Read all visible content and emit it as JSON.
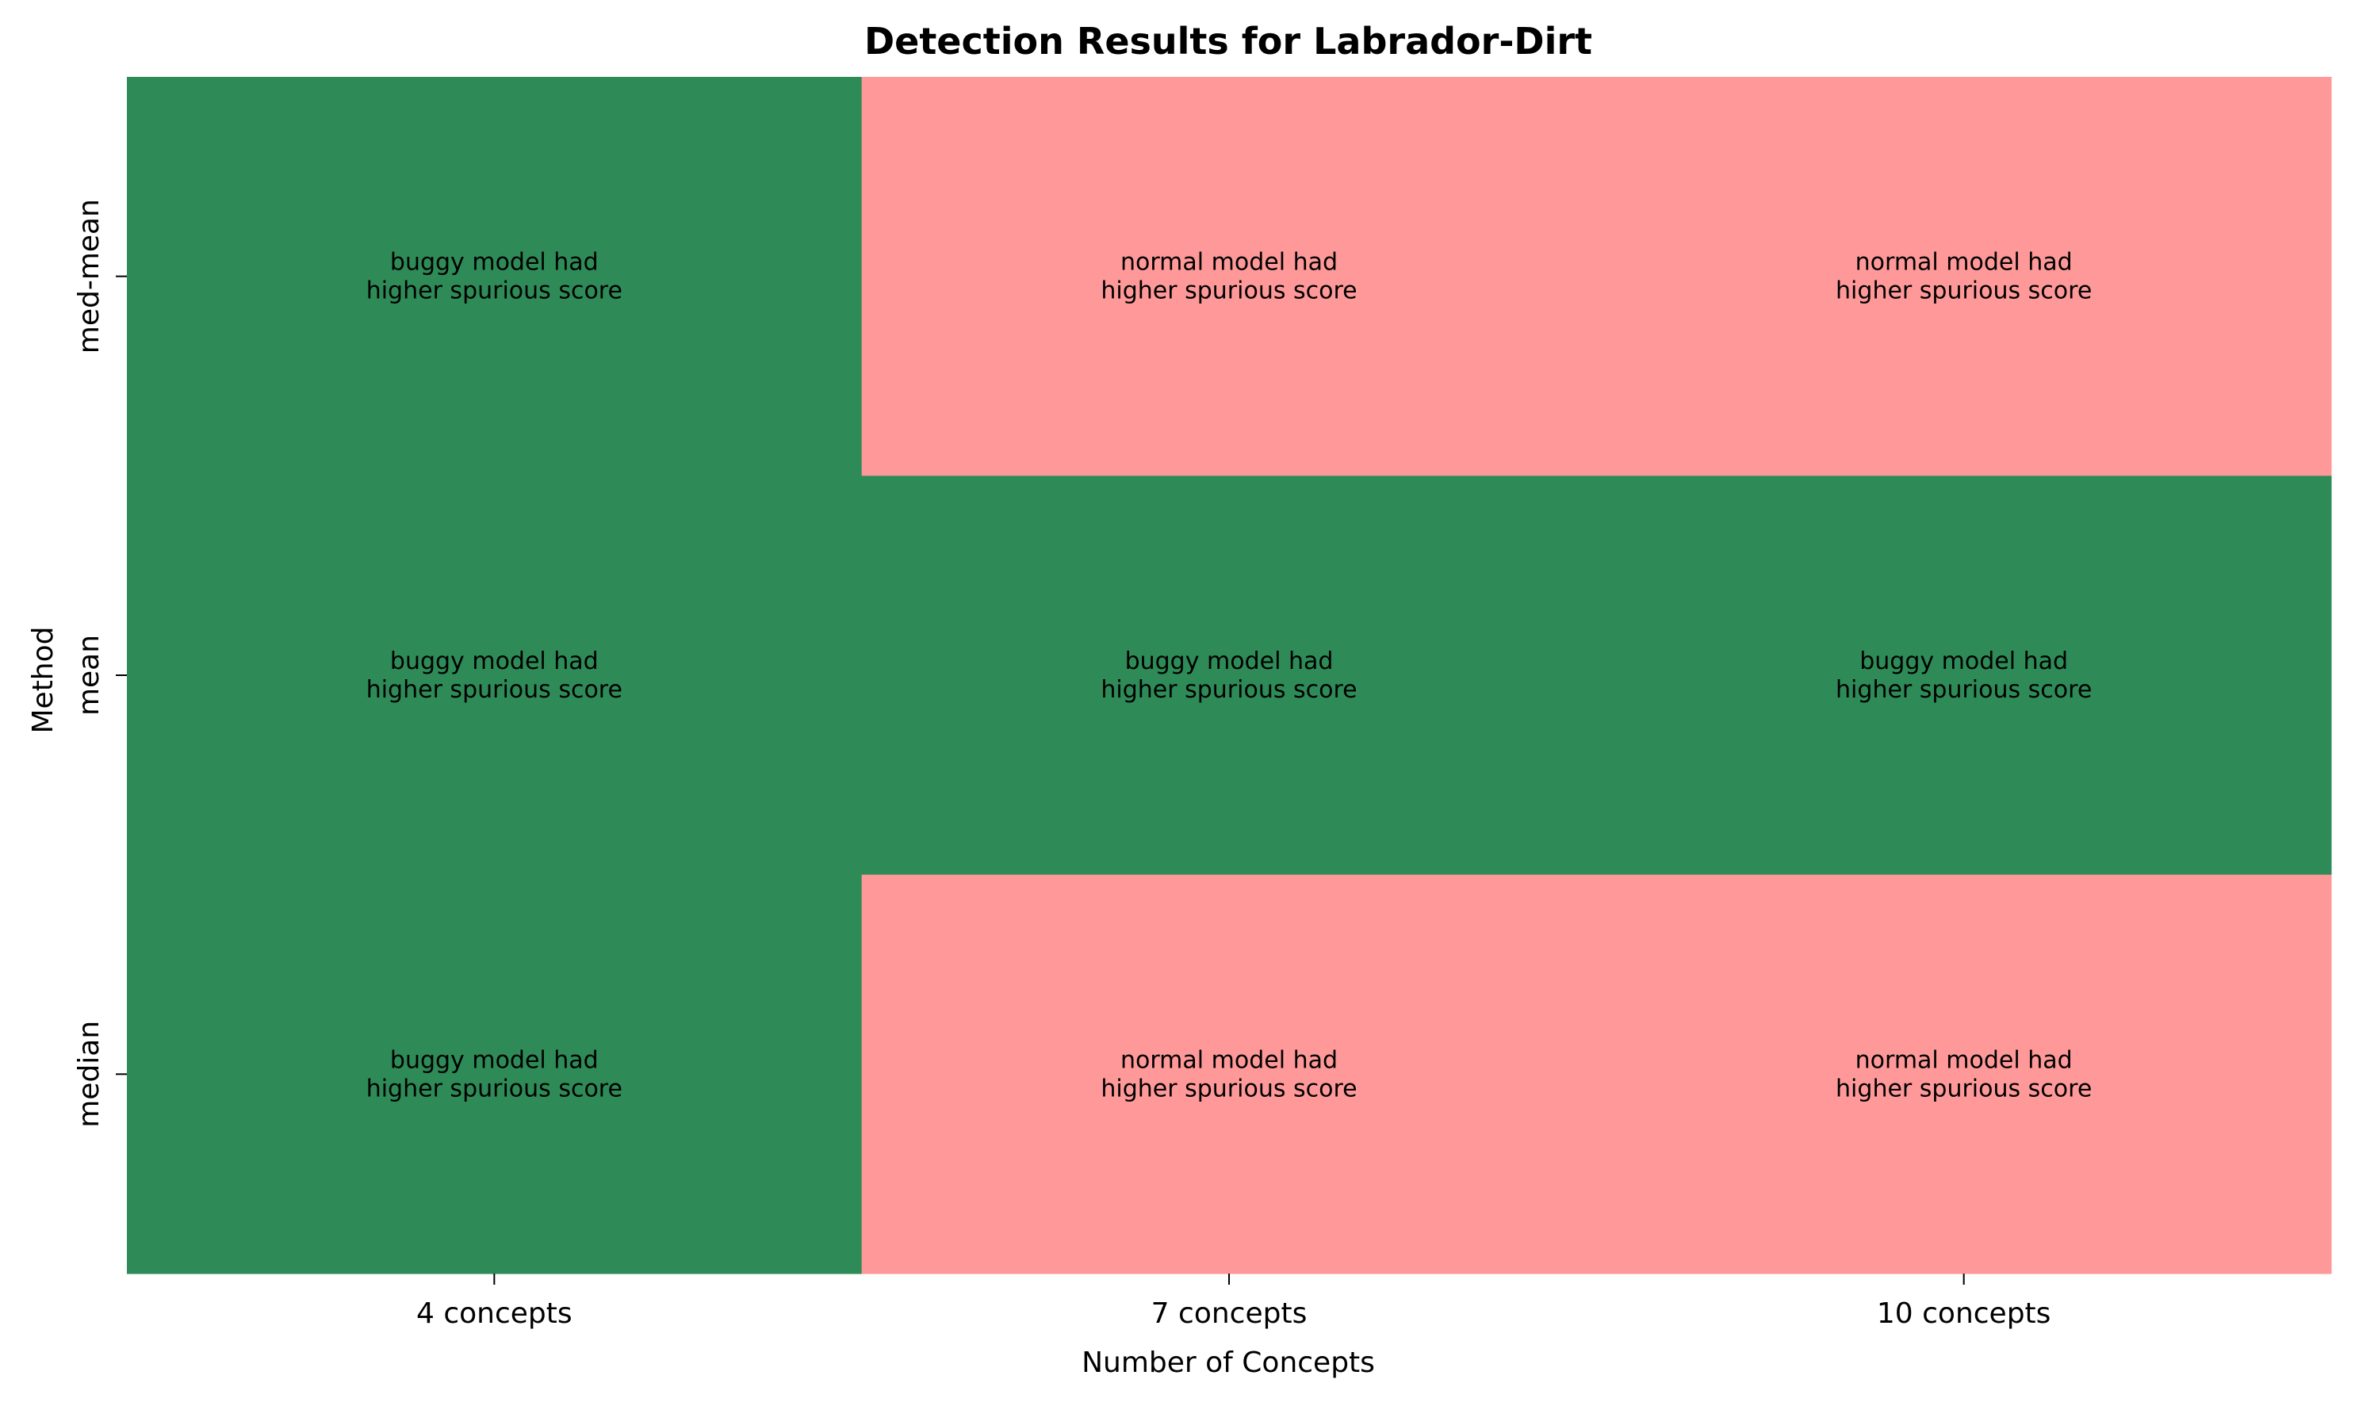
{
  "chart_data": {
    "type": "heatmap",
    "title": "Detection Results for Labrador-Dirt",
    "xlabel": "Number of Concepts",
    "ylabel": "Method",
    "x_categories": [
      "4 concepts",
      "7 concepts",
      "10 concepts"
    ],
    "y_categories": [
      "med-mean",
      "mean",
      "median"
    ],
    "cells": [
      [
        {
          "outcome": "buggy",
          "line1": "buggy model had",
          "line2": "higher spurious score"
        },
        {
          "outcome": "normal",
          "line1": "normal model had",
          "line2": "higher spurious score"
        },
        {
          "outcome": "normal",
          "line1": "normal model had",
          "line2": "higher spurious score"
        }
      ],
      [
        {
          "outcome": "buggy",
          "line1": "buggy model had",
          "line2": "higher spurious score"
        },
        {
          "outcome": "buggy",
          "line1": "buggy model had",
          "line2": "higher spurious score"
        },
        {
          "outcome": "buggy",
          "line1": "buggy model had",
          "line2": "higher spurious score"
        }
      ],
      [
        {
          "outcome": "buggy",
          "line1": "buggy model had",
          "line2": "higher spurious score"
        },
        {
          "outcome": "normal",
          "line1": "normal model had",
          "line2": "higher spurious score"
        },
        {
          "outcome": "normal",
          "line1": "normal model had",
          "line2": "higher spurious score"
        }
      ]
    ],
    "colors": {
      "buggy": "#2e8b57",
      "normal": "#ff9999"
    },
    "legend": "none",
    "grid": false
  }
}
